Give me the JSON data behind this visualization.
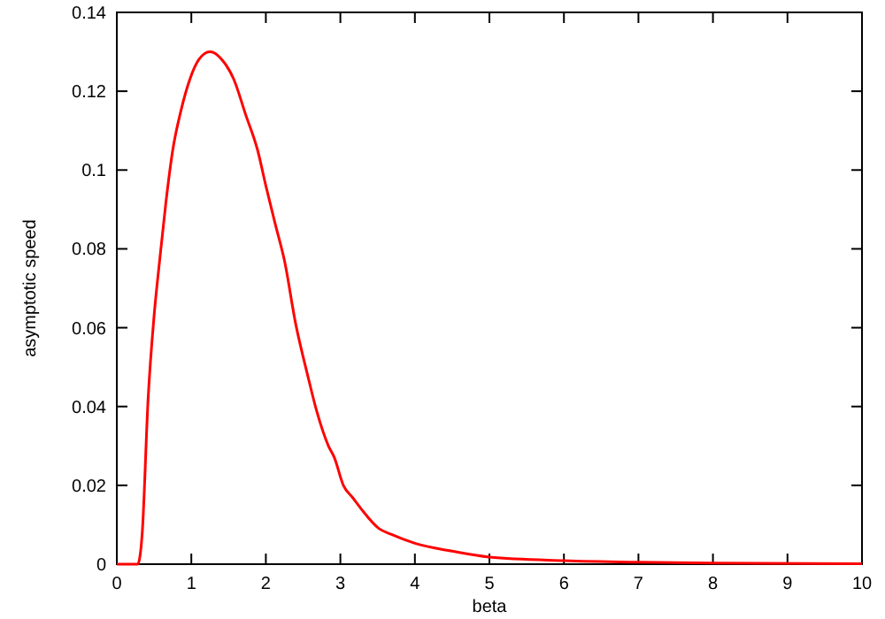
{
  "chart_data": {
    "type": "line",
    "xlabel": "beta",
    "ylabel": "asymptotic speed",
    "xlim": [
      0,
      10
    ],
    "ylim": [
      0,
      0.14
    ],
    "xticks": [
      0,
      1,
      2,
      3,
      4,
      5,
      6,
      7,
      8,
      9,
      10
    ],
    "yticks": [
      0,
      0.02,
      0.04,
      0.06,
      0.08,
      0.1,
      0.12,
      0.14
    ],
    "marker": "none",
    "line_style": "solid",
    "series": [
      {
        "color": "#ff0000",
        "x": [
          0,
          0.28,
          0.34,
          0.42,
          0.5,
          0.58,
          0.66,
          0.75,
          0.86,
          0.98,
          1.1,
          1.25,
          1.41,
          1.57,
          1.73,
          1.89,
          2.0,
          2.13,
          2.25,
          2.4,
          2.56,
          2.68,
          2.84,
          2.92,
          3.04,
          3.16,
          3.28,
          3.52,
          3.68,
          4,
          4.5,
          5,
          6,
          7,
          8,
          10
        ],
        "values": [
          0,
          0,
          0.0076,
          0.042,
          0.063,
          0.078,
          0.092,
          0.105,
          0.115,
          0.123,
          0.128,
          0.13,
          0.128,
          0.123,
          0.114,
          0.105,
          0.096,
          0.086,
          0.077,
          0.061,
          0.048,
          0.039,
          0.03,
          0.027,
          0.02,
          0.017,
          0.014,
          0.009,
          0.0076,
          0.0053,
          0.0033,
          0.0018,
          0.0009,
          0.0005,
          0.0003,
          0.0001
        ]
      }
    ]
  }
}
